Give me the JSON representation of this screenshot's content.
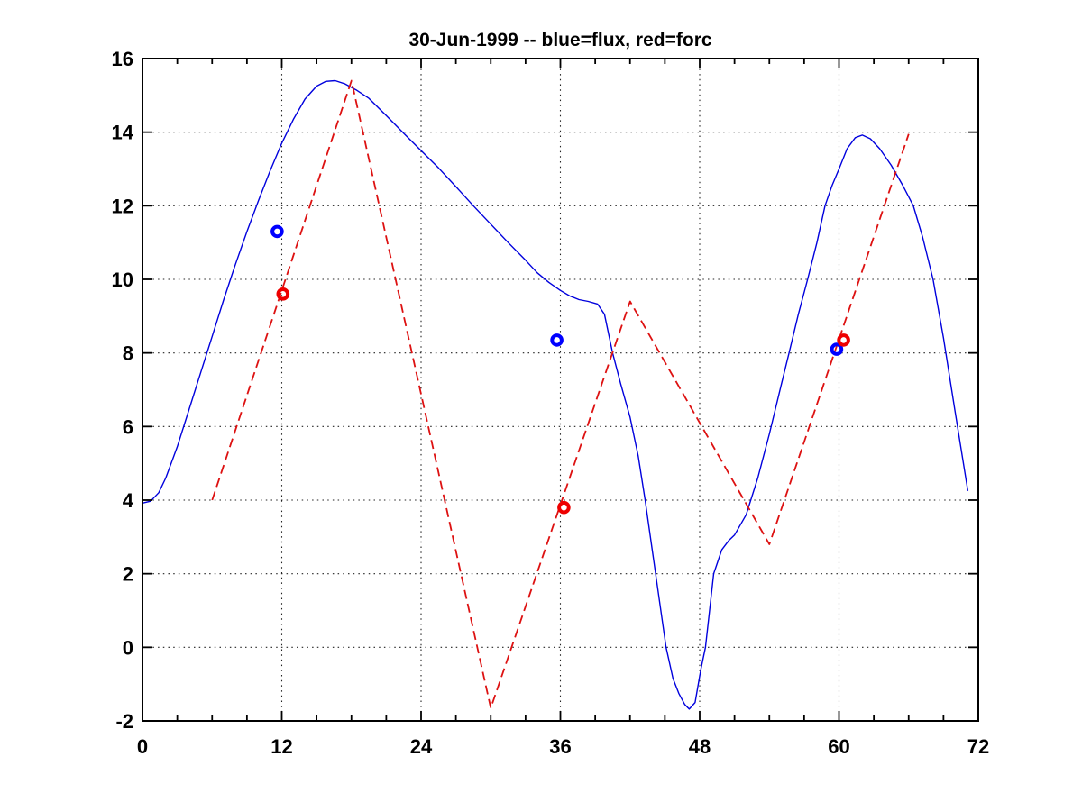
{
  "figure": {
    "background": "#ffffff"
  },
  "chart_data": {
    "type": "line",
    "title": "30-Jun-1999 -- blue=flux, red=forc",
    "xlabel": "",
    "ylabel": "",
    "xlim": [
      0,
      72
    ],
    "ylim": [
      -2,
      16
    ],
    "x_major_ticks": [
      0,
      12,
      24,
      36,
      48,
      60,
      72
    ],
    "x_minor_tick_step": 3,
    "y_major_ticks": [
      -2,
      0,
      2,
      4,
      6,
      8,
      10,
      12,
      14,
      16
    ],
    "grid": {
      "style": "dotted",
      "x_lines": [
        12,
        24,
        36,
        48,
        60
      ],
      "y_lines": [
        0,
        2,
        4,
        6,
        8,
        10,
        12,
        14
      ],
      "color": "#222222"
    },
    "axis_color": "#000000",
    "legend_in_title": {
      "blue": "flux",
      "red": "forc"
    },
    "series": [
      {
        "name": "flux",
        "type": "line",
        "style": "solid",
        "color": "#0000dd",
        "points": [
          [
            0,
            3.92
          ],
          [
            0.7,
            3.97
          ],
          [
            1.4,
            4.2
          ],
          [
            2,
            4.6
          ],
          [
            3,
            5.45
          ],
          [
            4,
            6.45
          ],
          [
            5,
            7.45
          ],
          [
            6,
            8.45
          ],
          [
            7,
            9.45
          ],
          [
            8,
            10.4
          ],
          [
            9,
            11.3
          ],
          [
            10,
            12.15
          ],
          [
            11,
            12.95
          ],
          [
            12,
            13.7
          ],
          [
            13,
            14.35
          ],
          [
            14,
            14.9
          ],
          [
            15,
            15.25
          ],
          [
            15.8,
            15.38
          ],
          [
            16.6,
            15.4
          ],
          [
            17.4,
            15.32
          ],
          [
            18.4,
            15.15
          ],
          [
            19.5,
            14.92
          ],
          [
            21,
            14.45
          ],
          [
            22.5,
            13.97
          ],
          [
            24,
            13.5
          ],
          [
            25.5,
            13.03
          ],
          [
            27,
            12.52
          ],
          [
            28.5,
            12.0
          ],
          [
            30,
            11.5
          ],
          [
            31.5,
            11.0
          ],
          [
            33,
            10.52
          ],
          [
            34,
            10.18
          ],
          [
            35,
            9.92
          ],
          [
            36,
            9.7
          ],
          [
            36.8,
            9.55
          ],
          [
            37.6,
            9.45
          ],
          [
            38.4,
            9.4
          ],
          [
            39.2,
            9.33
          ],
          [
            39.8,
            9.05
          ],
          [
            40.5,
            8.0
          ],
          [
            41.2,
            7.15
          ],
          [
            42,
            6.25
          ],
          [
            42.7,
            5.2
          ],
          [
            43.3,
            4.0
          ],
          [
            44.2,
            2.0
          ],
          [
            45.1,
            0
          ],
          [
            45.7,
            -0.85
          ],
          [
            46.2,
            -1.25
          ],
          [
            46.7,
            -1.55
          ],
          [
            47.1,
            -1.68
          ],
          [
            47.6,
            -1.5
          ],
          [
            48.1,
            -0.6
          ],
          [
            48.5,
            0
          ],
          [
            49.2,
            2.0
          ],
          [
            49.9,
            2.65
          ],
          [
            50.5,
            2.9
          ],
          [
            51,
            3.05
          ],
          [
            52,
            3.6
          ],
          [
            53,
            4.6
          ],
          [
            54,
            5.8
          ],
          [
            55,
            7.1
          ],
          [
            55.7,
            8.0
          ],
          [
            56.5,
            9.05
          ],
          [
            57.3,
            10.0
          ],
          [
            58.1,
            11.0
          ],
          [
            58.8,
            12.0
          ],
          [
            59.4,
            12.55
          ],
          [
            60,
            13.0
          ],
          [
            60.7,
            13.55
          ],
          [
            61.4,
            13.85
          ],
          [
            62,
            13.92
          ],
          [
            62.7,
            13.82
          ],
          [
            63.5,
            13.55
          ],
          [
            64.5,
            13.1
          ],
          [
            65.5,
            12.55
          ],
          [
            66.4,
            12.0
          ],
          [
            67.2,
            11.15
          ],
          [
            68.1,
            10.0
          ],
          [
            69,
            8.4
          ],
          [
            70,
            6.4
          ],
          [
            71.1,
            4.25
          ]
        ]
      },
      {
        "name": "forc",
        "type": "line",
        "style": "dashed",
        "color": "#dd1111",
        "points": [
          [
            6,
            4.0
          ],
          [
            18,
            15.4
          ],
          [
            30,
            -1.65
          ],
          [
            42,
            9.4
          ],
          [
            54,
            2.8
          ],
          [
            66,
            13.95
          ]
        ]
      },
      {
        "name": "flux-markers",
        "type": "scatter",
        "marker": "circle",
        "color": "#0000ff",
        "points": [
          [
            11.6,
            11.3
          ],
          [
            35.7,
            8.35
          ],
          [
            59.8,
            8.1
          ]
        ]
      },
      {
        "name": "forc-markers",
        "type": "scatter",
        "marker": "circle",
        "color": "#ee0000",
        "points": [
          [
            12.1,
            9.6
          ],
          [
            36.3,
            3.8
          ],
          [
            60.4,
            8.35
          ]
        ]
      }
    ]
  }
}
